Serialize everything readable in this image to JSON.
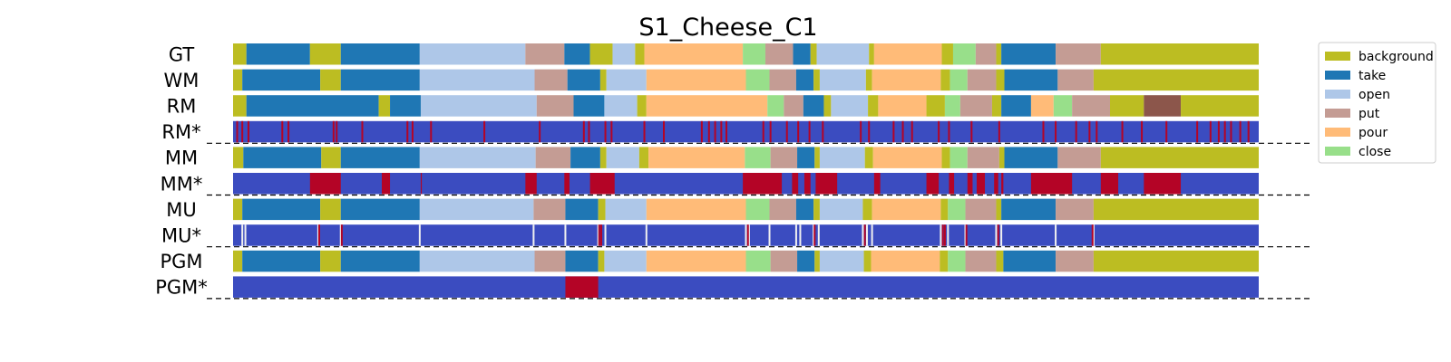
{
  "chart_data": {
    "type": "segmentation-timeline",
    "title": "S1_Cheese_C1",
    "x_range": [
      0,
      100
    ],
    "classes": [
      {
        "name": "background",
        "color": "#bcbd22"
      },
      {
        "name": "take",
        "color": "#1f77b4"
      },
      {
        "name": "open",
        "color": "#aec7e8"
      },
      {
        "name": "put",
        "color": "#c49c94"
      },
      {
        "name": "pour",
        "color": "#ffbb78"
      },
      {
        "name": "close",
        "color": "#98df8a"
      },
      {
        "name": "",
        "color": "#8c564b"
      }
    ],
    "error_colors": {
      "correct": "#3b4cc0",
      "error": "#b40426",
      "uncertain": "#f0f0f0"
    },
    "legend": [
      "background",
      "take",
      "open",
      "put",
      "pour",
      "close"
    ],
    "rows": [
      {
        "label": "GT",
        "kind": "seg",
        "segments": [
          [
            0,
            1.3,
            "background"
          ],
          [
            1.3,
            7.5,
            "take"
          ],
          [
            7.5,
            10.5,
            "background"
          ],
          [
            10.5,
            18.2,
            "take"
          ],
          [
            18.2,
            28.5,
            "open"
          ],
          [
            28.5,
            32.3,
            "put"
          ],
          [
            32.3,
            34.8,
            "take"
          ],
          [
            34.8,
            37,
            "background"
          ],
          [
            37,
            39.2,
            "open"
          ],
          [
            39.2,
            40.1,
            "background"
          ],
          [
            40.1,
            49.7,
            "pour"
          ],
          [
            49.7,
            51.9,
            "close"
          ],
          [
            51.9,
            54.6,
            "put"
          ],
          [
            54.6,
            56.3,
            "take"
          ],
          [
            56.3,
            56.9,
            "background"
          ],
          [
            56.9,
            62,
            "open"
          ],
          [
            62,
            62.5,
            "background"
          ],
          [
            62.5,
            69.1,
            "pour"
          ],
          [
            69.1,
            70.2,
            "background"
          ],
          [
            70.2,
            72.4,
            "close"
          ],
          [
            72.4,
            74.4,
            "put"
          ],
          [
            74.4,
            74.9,
            "background"
          ],
          [
            74.9,
            80.2,
            "take"
          ],
          [
            80.2,
            84.6,
            "put"
          ],
          [
            84.6,
            100,
            "background"
          ]
        ]
      },
      {
        "label": "WM",
        "kind": "seg",
        "segments": [
          [
            0,
            0.9,
            "background"
          ],
          [
            0.9,
            8.5,
            "take"
          ],
          [
            8.5,
            10.5,
            "background"
          ],
          [
            10.5,
            18.2,
            "take"
          ],
          [
            18.2,
            29.4,
            "open"
          ],
          [
            29.4,
            32.6,
            "put"
          ],
          [
            32.6,
            35.8,
            "take"
          ],
          [
            35.8,
            36.4,
            "background"
          ],
          [
            36.4,
            40.3,
            "open"
          ],
          [
            40.3,
            50,
            "pour"
          ],
          [
            50,
            52.3,
            "close"
          ],
          [
            52.3,
            54.9,
            "put"
          ],
          [
            54.9,
            56.6,
            "take"
          ],
          [
            56.6,
            57.2,
            "background"
          ],
          [
            57.2,
            61.7,
            "open"
          ],
          [
            61.7,
            62.3,
            "background"
          ],
          [
            62.3,
            69,
            "pour"
          ],
          [
            69,
            69.9,
            "background"
          ],
          [
            69.9,
            71.6,
            "close"
          ],
          [
            71.6,
            74.4,
            "put"
          ],
          [
            74.4,
            75.2,
            "background"
          ],
          [
            75.2,
            80.4,
            "take"
          ],
          [
            80.4,
            83.9,
            "put"
          ],
          [
            83.9,
            100,
            "background"
          ]
        ]
      },
      {
        "label": "RM",
        "kind": "seg",
        "segments": [
          [
            0,
            1.3,
            "background"
          ],
          [
            1.3,
            14.2,
            "take"
          ],
          [
            14.2,
            15.3,
            "background"
          ],
          [
            15.3,
            18.3,
            "take"
          ],
          [
            18.3,
            29.6,
            "open"
          ],
          [
            29.6,
            33.2,
            "put"
          ],
          [
            33.2,
            36.2,
            "take"
          ],
          [
            36.2,
            39.4,
            "open"
          ],
          [
            39.4,
            40.3,
            "background"
          ],
          [
            40.3,
            52.1,
            "pour"
          ],
          [
            52.1,
            53.7,
            "close"
          ],
          [
            53.7,
            55.6,
            "put"
          ],
          [
            55.6,
            57.6,
            "take"
          ],
          [
            57.6,
            58.3,
            "background"
          ],
          [
            58.3,
            61.9,
            "open"
          ],
          [
            61.9,
            62.9,
            "background"
          ],
          [
            62.9,
            67.6,
            "pour"
          ],
          [
            67.6,
            69.4,
            "background"
          ],
          [
            69.4,
            70.9,
            "close"
          ],
          [
            70.9,
            74,
            "put"
          ],
          [
            74,
            74.9,
            "background"
          ],
          [
            74.9,
            77.8,
            "take"
          ],
          [
            77.8,
            80,
            "pour"
          ],
          [
            80,
            81.8,
            "close"
          ],
          [
            81.8,
            85.5,
            "put"
          ],
          [
            85.5,
            88.8,
            "background"
          ],
          [
            88.8,
            92.4,
            "brown"
          ],
          [
            92.4,
            100,
            "background"
          ]
        ]
      },
      {
        "label": "RM*",
        "kind": "err",
        "errors": [
          0.4,
          0.9,
          1.5,
          4.8,
          5.4,
          9.8,
          10.1,
          12.6,
          17,
          17.5,
          19.3,
          24.5,
          29.9,
          34.2,
          34.7,
          36.3,
          36.9,
          40.1,
          42,
          45.7,
          46.4,
          47,
          47.6,
          48.1,
          51.7,
          52.4,
          54,
          55.1,
          56.2,
          57.5,
          61.2,
          62,
          64.4,
          65.3,
          66.2,
          68.8,
          69.8,
          72,
          74.7,
          79,
          80.2,
          82.2,
          83.5,
          84.2,
          86.7,
          88.6,
          91,
          94,
          95.3,
          96.1,
          96.7,
          97.3,
          98.2,
          99
        ]
      },
      {
        "label": "MM",
        "kind": "seg",
        "segments": [
          [
            0,
            1,
            "background"
          ],
          [
            1,
            8.6,
            "take"
          ],
          [
            8.6,
            10.5,
            "background"
          ],
          [
            10.5,
            18.2,
            "take"
          ],
          [
            18.2,
            29.5,
            "open"
          ],
          [
            29.5,
            32.9,
            "put"
          ],
          [
            32.9,
            35.8,
            "take"
          ],
          [
            35.8,
            36.4,
            "background"
          ],
          [
            36.4,
            39.6,
            "open"
          ],
          [
            39.6,
            40.5,
            "background"
          ],
          [
            40.5,
            49.9,
            "pour"
          ],
          [
            49.9,
            52.4,
            "close"
          ],
          [
            52.4,
            55,
            "put"
          ],
          [
            55,
            56.7,
            "take"
          ],
          [
            56.7,
            57.2,
            "background"
          ],
          [
            57.2,
            61.6,
            "open"
          ],
          [
            61.6,
            62.4,
            "background"
          ],
          [
            62.4,
            69.1,
            "pour"
          ],
          [
            69.1,
            69.9,
            "background"
          ],
          [
            69.9,
            71.6,
            "close"
          ],
          [
            71.6,
            74.7,
            "put"
          ],
          [
            74.7,
            75.2,
            "background"
          ],
          [
            75.2,
            80.4,
            "take"
          ],
          [
            80.4,
            84.6,
            "put"
          ],
          [
            84.6,
            100,
            "background"
          ]
        ]
      },
      {
        "label": "MM*",
        "kind": "err",
        "spans": [
          [
            7.5,
            10.5
          ],
          [
            14.5,
            15.3
          ],
          [
            18.3,
            18.4
          ],
          [
            28.5,
            29.6
          ],
          [
            32.3,
            32.8
          ],
          [
            34.8,
            37.2
          ],
          [
            49.7,
            53.5
          ],
          [
            54.5,
            55.1
          ],
          [
            55.7,
            56.3
          ],
          [
            56.8,
            58.9
          ],
          [
            62.5,
            63.1
          ],
          [
            67.6,
            68.8
          ],
          [
            69.8,
            70.3
          ],
          [
            71.6,
            72.1
          ],
          [
            72.5,
            73.3
          ],
          [
            74.2,
            74.6
          ],
          [
            74.9,
            75.1
          ],
          [
            77.8,
            81.8
          ],
          [
            84.6,
            86.3
          ],
          [
            88.8,
            92.4
          ]
        ]
      },
      {
        "label": "MU",
        "kind": "seg",
        "segments": [
          [
            0,
            0.9,
            "background"
          ],
          [
            0.9,
            8.5,
            "take"
          ],
          [
            8.5,
            10.5,
            "background"
          ],
          [
            10.5,
            18.2,
            "take"
          ],
          [
            18.2,
            29.3,
            "open"
          ],
          [
            29.3,
            32.4,
            "put"
          ],
          [
            32.4,
            35.6,
            "take"
          ],
          [
            35.6,
            36.3,
            "background"
          ],
          [
            36.3,
            40.3,
            "open"
          ],
          [
            40.3,
            50,
            "pour"
          ],
          [
            50,
            52.3,
            "close"
          ],
          [
            52.3,
            54.9,
            "put"
          ],
          [
            54.9,
            56.6,
            "take"
          ],
          [
            56.6,
            57.2,
            "background"
          ],
          [
            57.2,
            61.4,
            "open"
          ],
          [
            61.4,
            62.3,
            "background"
          ],
          [
            62.3,
            69,
            "pour"
          ],
          [
            69,
            69.7,
            "background"
          ],
          [
            69.7,
            71.4,
            "close"
          ],
          [
            71.4,
            74.4,
            "put"
          ],
          [
            74.4,
            74.9,
            "background"
          ],
          [
            74.9,
            80.2,
            "take"
          ],
          [
            80.2,
            83.9,
            "put"
          ],
          [
            83.9,
            100,
            "background"
          ]
        ]
      },
      {
        "label": "MU*",
        "kind": "err",
        "uncertain": [
          0.9,
          1.2,
          8.3,
          10.5,
          18.2,
          29.3,
          32.4,
          35.6,
          36.3,
          40.3,
          50,
          50.3,
          52.3,
          54.9,
          55.3,
          56.6,
          57.1,
          61.4,
          61.8,
          62.3,
          69,
          69.7,
          71.4,
          74.4,
          74.9,
          80.2,
          83.9
        ],
        "errors": [
          8.4,
          10.6,
          35.7,
          35.9,
          50.2,
          56.7,
          61.6,
          69.2,
          69.4,
          71.5,
          74.6,
          83.8
        ]
      },
      {
        "label": "PGM",
        "kind": "seg",
        "segments": [
          [
            0,
            0.9,
            "background"
          ],
          [
            0.9,
            8.5,
            "take"
          ],
          [
            8.5,
            10.5,
            "background"
          ],
          [
            10.5,
            18.2,
            "take"
          ],
          [
            18.2,
            29.4,
            "open"
          ],
          [
            29.4,
            32.4,
            "put"
          ],
          [
            32.4,
            35.6,
            "take"
          ],
          [
            35.6,
            36.2,
            "background"
          ],
          [
            36.2,
            40.3,
            "open"
          ],
          [
            40.3,
            50,
            "pour"
          ],
          [
            50,
            52.4,
            "close"
          ],
          [
            52.4,
            55,
            "put"
          ],
          [
            55,
            56.7,
            "take"
          ],
          [
            56.7,
            57.2,
            "background"
          ],
          [
            57.2,
            61.5,
            "open"
          ],
          [
            61.5,
            62.2,
            "background"
          ],
          [
            62.2,
            68.9,
            "pour"
          ],
          [
            68.9,
            69.7,
            "background"
          ],
          [
            69.7,
            71.4,
            "close"
          ],
          [
            71.4,
            74.4,
            "put"
          ],
          [
            74.4,
            75.1,
            "background"
          ],
          [
            75.1,
            80.2,
            "take"
          ],
          [
            80.2,
            83.9,
            "put"
          ],
          [
            83.9,
            100,
            "background"
          ]
        ]
      },
      {
        "label": "PGM*",
        "kind": "err",
        "spans": [
          [
            32.4,
            35.6
          ]
        ]
      }
    ]
  }
}
